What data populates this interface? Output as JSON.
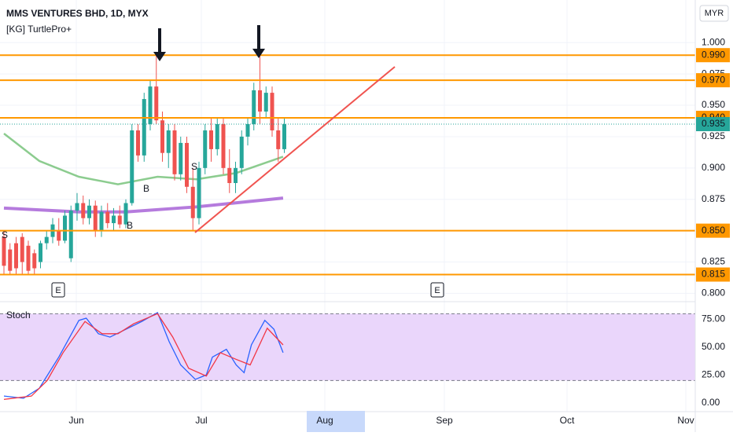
{
  "chart_data": [
    {
      "type": "candlestick",
      "title": "MMS VENTURES BHD, 1D, MYX",
      "subtitle": "[KG] TurtlePro+",
      "currency": "MYR",
      "up_color": "#26a69a",
      "down_color": "#ef5350",
      "grid": true,
      "ylim": [
        0.794,
        1.034
      ],
      "yticks": [
        {
          "value": 0.8,
          "label": "0.800"
        },
        {
          "value": 0.825,
          "label": "0.825"
        },
        {
          "value": 0.875,
          "label": "0.875"
        },
        {
          "value": 0.9,
          "label": "0.900"
        },
        {
          "value": 0.925,
          "label": "0.925"
        },
        {
          "value": 0.95,
          "label": "0.950"
        },
        {
          "value": 0.975,
          "label": "0.975"
        },
        {
          "value": 1,
          "label": "1.000"
        }
      ],
      "open": [
        0.845,
        0.835,
        0.84,
        0.845,
        0.838,
        0.832,
        0.825,
        0.84,
        0.845,
        0.85,
        0.842,
        0.828,
        0.866,
        0.872,
        0.86,
        0.87,
        0.85,
        0.865,
        0.856,
        0.862,
        0.855,
        0.872,
        0.93,
        0.91,
        0.935,
        0.965,
        0.938,
        0.912,
        0.93,
        0.895,
        0.92,
        0.885,
        0.86,
        0.9,
        0.93,
        0.915,
        0.935,
        0.9,
        0.888,
        0.9,
        0.925,
        0.935,
        0.962,
        0.945,
        0.96,
        0.93,
        0.915
      ],
      "high": [
        0.85,
        0.84,
        0.845,
        0.848,
        0.842,
        0.835,
        0.842,
        0.85,
        0.86,
        0.86,
        0.866,
        0.87,
        0.88,
        0.878,
        0.875,
        0.874,
        0.87,
        0.872,
        0.868,
        0.87,
        0.875,
        0.935,
        0.935,
        0.96,
        0.97,
        0.99,
        0.945,
        0.935,
        0.935,
        0.925,
        0.925,
        0.9,
        0.905,
        0.935,
        0.94,
        0.94,
        0.94,
        0.915,
        0.905,
        0.93,
        0.94,
        0.968,
        0.99,
        0.965,
        0.965,
        0.94,
        0.94
      ],
      "low": [
        0.815,
        0.815,
        0.815,
        0.815,
        0.815,
        0.815,
        0.82,
        0.835,
        0.84,
        0.838,
        0.84,
        0.825,
        0.858,
        0.855,
        0.855,
        0.845,
        0.845,
        0.852,
        0.85,
        0.852,
        0.852,
        0.87,
        0.905,
        0.905,
        0.93,
        0.935,
        0.905,
        0.9,
        0.89,
        0.89,
        0.88,
        0.85,
        0.855,
        0.895,
        0.905,
        0.91,
        0.895,
        0.88,
        0.88,
        0.895,
        0.918,
        0.93,
        0.935,
        0.94,
        0.925,
        0.905,
        0.912
      ],
      "close": [
        0.822,
        0.818,
        0.82,
        0.825,
        0.818,
        0.82,
        0.84,
        0.845,
        0.855,
        0.842,
        0.862,
        0.866,
        0.872,
        0.86,
        0.87,
        0.85,
        0.865,
        0.856,
        0.862,
        0.855,
        0.872,
        0.93,
        0.91,
        0.955,
        0.965,
        0.938,
        0.912,
        0.93,
        0.895,
        0.92,
        0.885,
        0.86,
        0.9,
        0.93,
        0.915,
        0.935,
        0.9,
        0.888,
        0.9,
        0.925,
        0.935,
        0.962,
        0.945,
        0.96,
        0.93,
        0.915,
        0.935
      ],
      "overlays": [
        {
          "color": "#9c4fd1",
          "x": [
            0,
            12.3,
            20,
            31.6,
            45.8
          ],
          "values": [
            0.868,
            0.865,
            0.865,
            0.869,
            0.876
          ]
        },
        {
          "color": "#66bb6a",
          "x": [
            0,
            5.8,
            12.3,
            18.7,
            25.2,
            31.6,
            38.1,
            45.8
          ],
          "values": [
            0.9275,
            0.9056,
            0.893,
            0.887,
            0.893,
            0.891,
            0.896,
            0.909
          ]
        }
      ],
      "levels": [
        {
          "value": 0.99,
          "label": "0.990"
        },
        {
          "value": 0.97,
          "label": "0.970"
        },
        {
          "value": 0.94,
          "label": "0.940"
        },
        {
          "value": 0.85,
          "label": "0.850"
        },
        {
          "value": 0.815,
          "label": "0.815"
        }
      ],
      "level_color": "#ff9800",
      "last_price": {
        "value": 0.935,
        "label": "0.935"
      },
      "signals": [
        "S",
        "S",
        "B",
        "B"
      ],
      "events": [
        "E",
        "E"
      ],
      "months": [
        "Jun",
        "Jul",
        "Aug",
        "Sep",
        "Oct",
        "Nov"
      ]
    },
    {
      "type": "line",
      "title": "Stoch",
      "ylim": [
        -8,
        88
      ],
      "band": [
        20,
        80
      ],
      "fill": "#ead6fb",
      "yticks": [
        {
          "value": 0,
          "label": "0.00"
        },
        {
          "value": 25,
          "label": "25.00"
        },
        {
          "value": 50,
          "label": "50.00"
        },
        {
          "value": 75,
          "label": "75.00"
        }
      ],
      "series": [
        {
          "color": "#2962ff",
          "x": [
            0,
            3.2,
            5.8,
            9,
            12.3,
            13.5,
            15.5,
            17.4,
            20,
            22.6,
            25.2,
            27.1,
            29,
            31.4,
            33.2,
            34.2,
            36.5,
            38.1,
            39.4,
            40.6,
            42.8,
            44.3,
            45.8
          ],
          "values": [
            6,
            4,
            13,
            41,
            74,
            76,
            62,
            59,
            66,
            73,
            81,
            55,
            34,
            21,
            25,
            41,
            48,
            34,
            27,
            52,
            74,
            66,
            45
          ]
        },
        {
          "color": "#f23645",
          "x": [
            0,
            4.5,
            7.1,
            9.7,
            13.3,
            16.1,
            18.7,
            21.3,
            25.2,
            27.7,
            30.3,
            33.2,
            35.5,
            38.1,
            40.4,
            43.2,
            45.8
          ],
          "values": [
            3,
            6,
            20,
            45,
            73,
            62,
            62,
            71,
            80,
            59,
            31,
            24,
            45,
            39,
            34,
            67,
            52
          ]
        }
      ]
    }
  ]
}
